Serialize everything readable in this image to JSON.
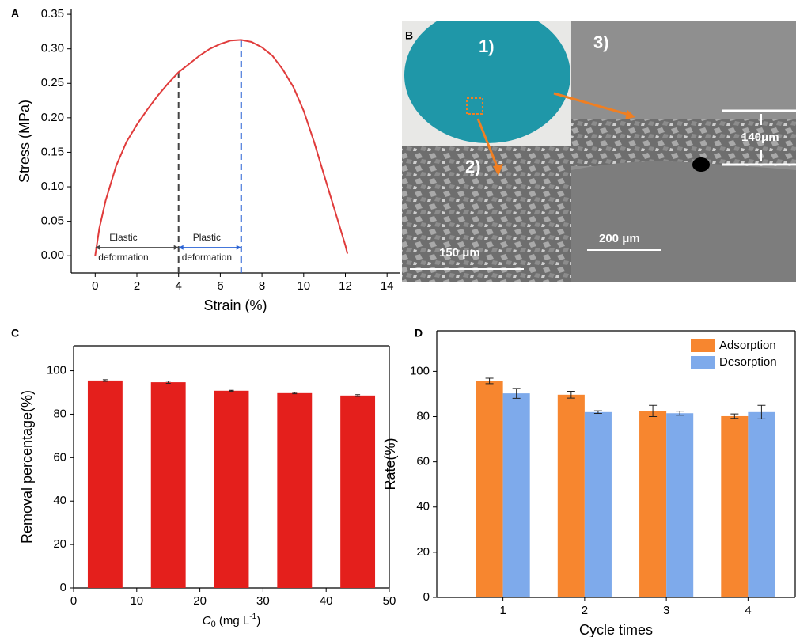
{
  "chart_data": [
    {
      "type": "line",
      "panel": "A",
      "xlabel": "Strain (%)",
      "ylabel": "Stress (MPa)",
      "x": [
        0,
        0.2,
        0.5,
        1,
        1.5,
        2,
        2.5,
        3,
        3.5,
        4,
        4.5,
        5,
        5.5,
        6,
        6.5,
        7,
        7.5,
        8,
        8.5,
        9,
        9.5,
        10,
        10.5,
        11,
        11.5,
        12,
        12.1
      ],
      "values": [
        0,
        0.04,
        0.08,
        0.13,
        0.165,
        0.19,
        0.212,
        0.232,
        0.25,
        0.266,
        0.278,
        0.29,
        0.3,
        0.307,
        0.312,
        0.313,
        0.31,
        0.302,
        0.29,
        0.27,
        0.245,
        0.21,
        0.165,
        0.115,
        0.065,
        0.015,
        0.003
      ],
      "color": "#e03b3b",
      "xlim": [
        -1.15,
        14.6
      ],
      "xticks": [
        0,
        2,
        4,
        6,
        8,
        10,
        12,
        14
      ],
      "ylim": [
        -0.025,
        0.357
      ],
      "yticks": [
        {
          "value": 0,
          "label": "0.00"
        },
        {
          "value": 0.05,
          "label": "0.05"
        },
        {
          "value": 0.1,
          "label": "0.10"
        },
        {
          "value": 0.15,
          "label": "0.15"
        },
        {
          "value": 0.2,
          "label": "0.20"
        },
        {
          "value": 0.25,
          "label": "0.25"
        },
        {
          "value": 0.3,
          "label": "0.30"
        },
        {
          "value": 0.35,
          "label": "0.35"
        }
      ],
      "vlines": [
        {
          "x": 4,
          "y": 0.266,
          "color": "#444444"
        },
        {
          "x": 7,
          "y": 0.313,
          "color": "#2a62d4"
        }
      ],
      "annotations": [
        {
          "lines": [
            "Elastic",
            "deformation"
          ],
          "x0": 0,
          "x1": 4,
          "y": 0.012,
          "color": "#444444"
        },
        {
          "lines": [
            "Plastic",
            "deformation"
          ],
          "x0": 4,
          "x1": 7,
          "y": 0.012,
          "color": "#2a62d4"
        }
      ]
    },
    {
      "type": "bar",
      "panel": "C",
      "xlabel": [
        "C",
        "0",
        " (mg L",
        "-1",
        ")"
      ],
      "ylabel": "Removal percentage(%)",
      "x": [
        5,
        15,
        25,
        35,
        45
      ],
      "values": [
        95.5,
        94.7,
        90.8,
        89.7,
        88.6
      ],
      "errors": [
        0.4,
        0.5,
        0.2,
        0.3,
        0.4
      ],
      "color": "#e41f1c",
      "xlim": [
        0,
        50
      ],
      "xticks": [
        0,
        10,
        20,
        30,
        40,
        50
      ],
      "ylim": [
        0,
        111.5
      ],
      "yticks": [
        0,
        20,
        40,
        60,
        80,
        100
      ]
    },
    {
      "type": "grouped_bar",
      "panel": "D",
      "xlabel": "Cycle times",
      "ylabel": "Rate(%)",
      "categories": [
        "1",
        "2",
        "3",
        "4"
      ],
      "series": [
        {
          "name": "Adsorption",
          "color": "#f7862f",
          "values": [
            95.8,
            89.7,
            82.5,
            80.2
          ],
          "errors": [
            1.2,
            1.5,
            2.5,
            1.0
          ]
        },
        {
          "name": "Desorption",
          "color": "#7eaaeb",
          "values": [
            90.3,
            82.0,
            81.5,
            82.0
          ],
          "errors": [
            2.2,
            0.6,
            0.9,
            3.0
          ]
        }
      ],
      "ylim": [
        0,
        118
      ],
      "yticks": [
        0,
        20,
        40,
        60,
        80,
        100
      ],
      "legend": "upper right"
    }
  ],
  "image_panel": {
    "panel": "B",
    "labels": [
      "1)",
      "2)",
      "3)"
    ],
    "measures": [
      "140μm",
      "150 μm",
      "200 μm"
    ]
  }
}
